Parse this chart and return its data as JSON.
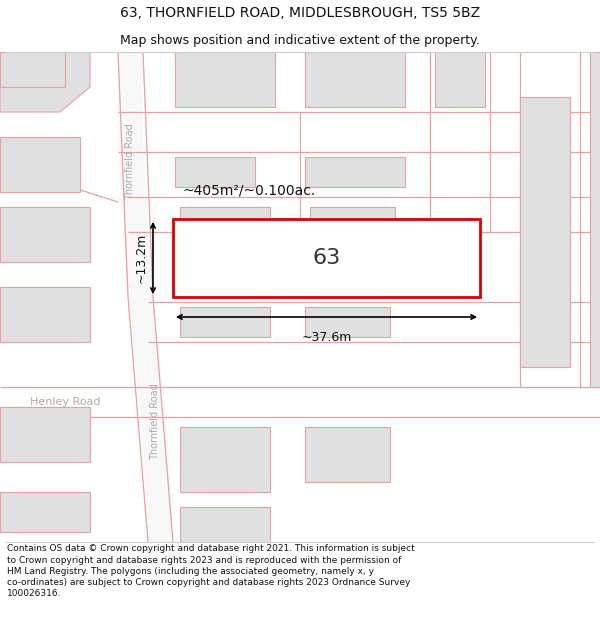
{
  "title_line1": "63, THORNFIELD ROAD, MIDDLESBROUGH, TS5 5BZ",
  "title_line2": "Map shows position and indicative extent of the property.",
  "footer_text": "Contains OS data © Crown copyright and database right 2021. This information is subject to Crown copyright and database rights 2023 and is reproduced with the permission of HM Land Registry. The polygons (including the associated geometry, namely x, y co-ordinates) are subject to Crown copyright and database rights 2023 Ordnance Survey 100026316.",
  "bg_color": "#ffffff",
  "map_bg": "#ffffff",
  "bld_fill": "#e0e0e0",
  "bld_edge": "#e8a0a0",
  "road_edge": "#e8a0a0",
  "highlight_stroke": "#dd0000",
  "dim_color": "#000000",
  "label_color": "#555555",
  "label_63": "63",
  "area_label": "~405m²/~0.100ac.",
  "dim_width": "~37.6m",
  "dim_height": "~13.2m",
  "road_label1": "Thornfield Road",
  "road_label2": "Thornfield Road",
  "road_label3": "Henley Road",
  "title_fontsize": 10,
  "subtitle_fontsize": 9,
  "footer_fontsize": 6.5
}
